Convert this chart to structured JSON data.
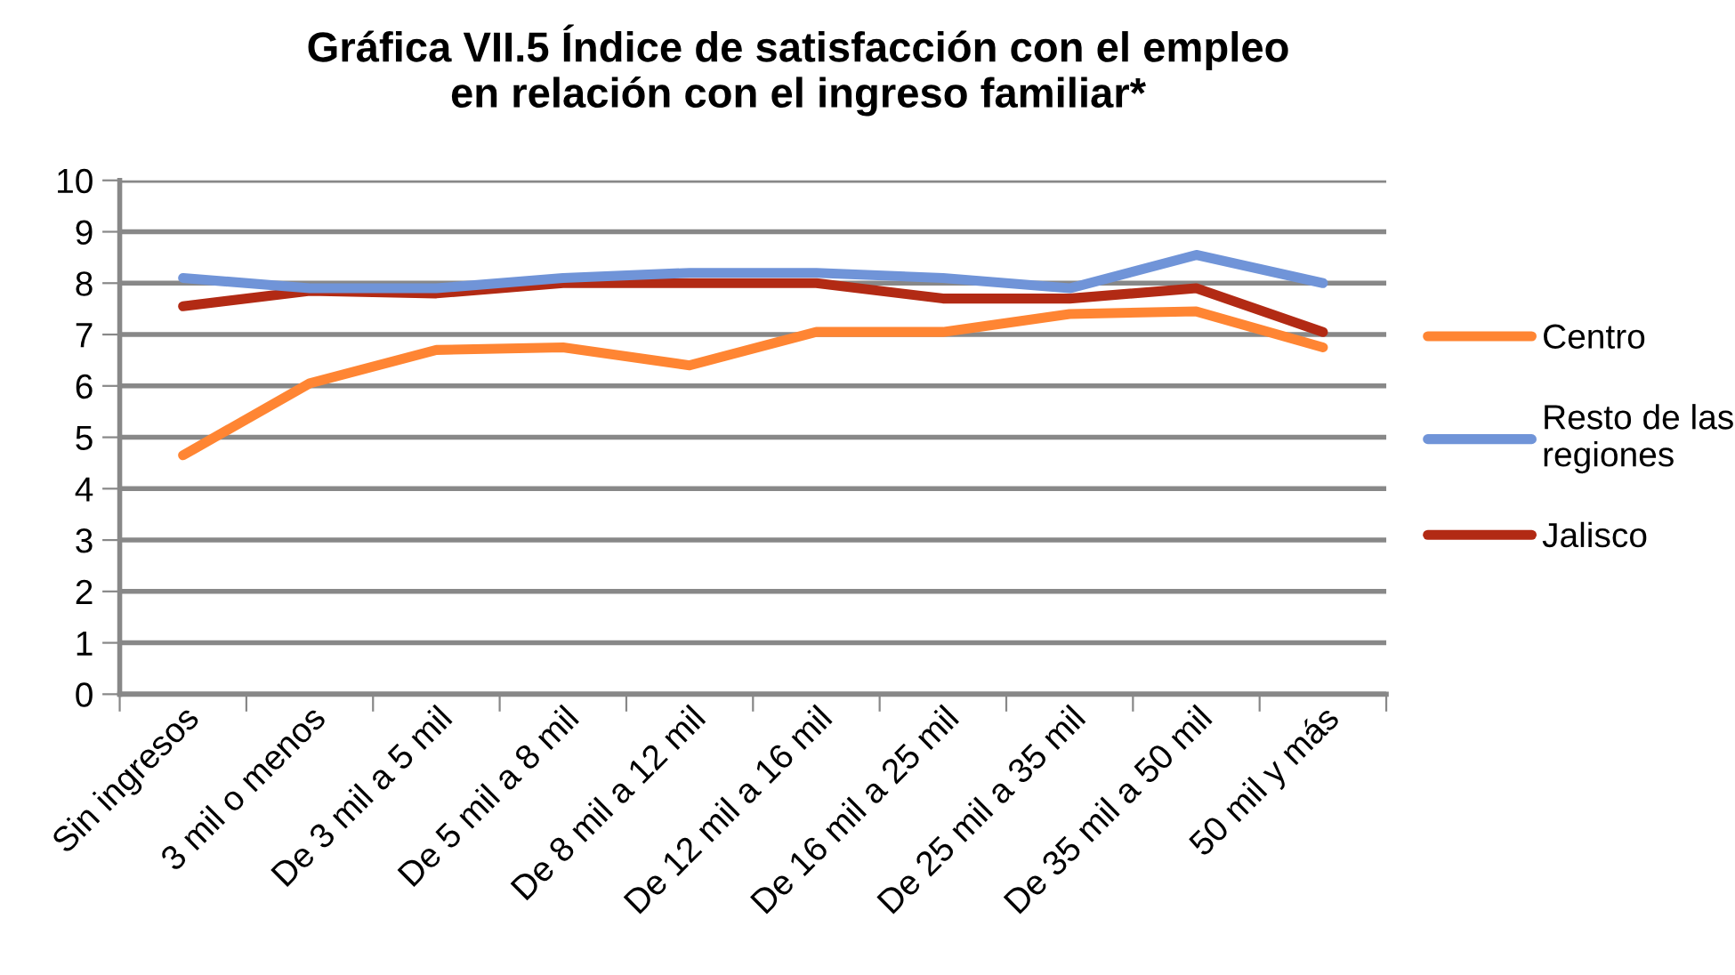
{
  "chart_data": {
    "type": "line",
    "title": "Gráfica VII.5 Índice de satisfacción con el empleo\nen relación con el ingreso familiar*",
    "categories": [
      "Sin ingresos",
      "3 mil o menos",
      "De 3 mil a 5 mil",
      "De 5 mil a 8 mil",
      "De 8 mil a 12 mil",
      "De 12 mil a 16 mil",
      "De 16 mil a 25 mil",
      "De 25 mil a 35 mil",
      "De 35 mil a 50 mil",
      "50 mil y más"
    ],
    "series": [
      {
        "name": "Centro",
        "color": "#ff8533",
        "values": [
          4.65,
          6.05,
          6.7,
          6.75,
          6.4,
          7.05,
          7.05,
          7.4,
          7.45,
          6.75
        ]
      },
      {
        "name": "Resto de las\nregiones",
        "color": "#7094d8",
        "values": [
          8.1,
          7.9,
          7.9,
          8.1,
          8.2,
          8.2,
          8.1,
          7.9,
          8.55,
          8.0
        ]
      },
      {
        "name": "Jalisco",
        "color": "#b22a14",
        "values": [
          7.55,
          7.85,
          7.8,
          8.0,
          8.0,
          8.0,
          7.7,
          7.7,
          7.9,
          7.05
        ]
      }
    ],
    "ylim": [
      0,
      10
    ],
    "yticks": [
      0,
      1,
      2,
      3,
      4,
      5,
      6,
      7,
      8,
      9,
      10
    ],
    "grid": "y",
    "legend": "right",
    "marker": "none",
    "line_style": "solid"
  }
}
